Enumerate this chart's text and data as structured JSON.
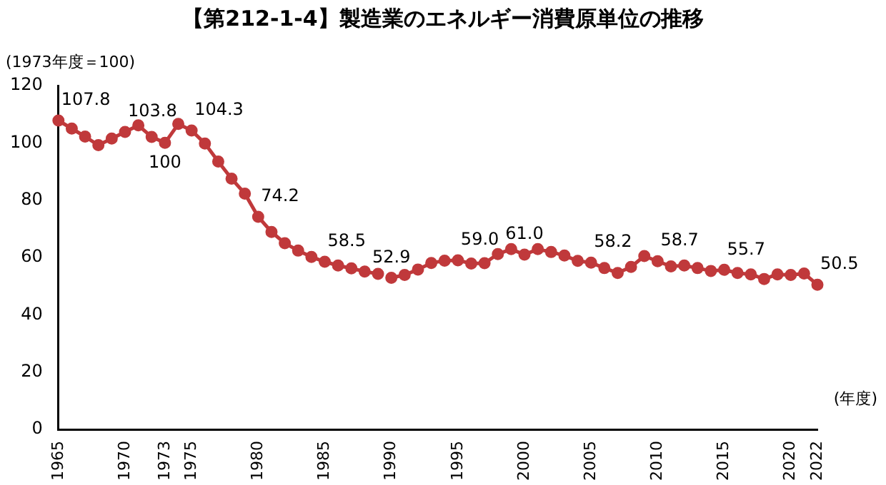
{
  "chart_data": {
    "type": "line",
    "title": "【第212-1-4】製造業のエネルギー消費原単位の推移",
    "ylabel": "(1973年度＝100)",
    "xlabel": "(年度)",
    "categories": [
      "1965",
      null,
      null,
      null,
      null,
      "1970",
      null,
      null,
      "1973",
      null,
      "1975",
      null,
      null,
      null,
      null,
      "1980",
      null,
      null,
      null,
      null,
      "1985",
      null,
      null,
      null,
      null,
      "1990",
      null,
      null,
      null,
      null,
      "1995",
      null,
      null,
      null,
      null,
      "2000",
      null,
      null,
      null,
      null,
      "2005",
      null,
      null,
      null,
      null,
      "2010",
      null,
      null,
      null,
      null,
      "2015",
      null,
      null,
      null,
      null,
      "2020",
      null,
      "2022"
    ],
    "series": [
      {
        "color": "#c0393b",
        "values": [
          107.8,
          105.0,
          102.2,
          99.2,
          101.5,
          103.8,
          106.1,
          102.1,
          100,
          106.6,
          104.3,
          99.8,
          93.5,
          87.5,
          82.3,
          74.2,
          68.9,
          65.0,
          62.4,
          60.2,
          58.5,
          57.2,
          56.2,
          55.1,
          54.3,
          null,
          null,
          null,
          null,
          null,
          null,
          null,
          null,
          null,
          null,
          null,
          null,
          null,
          null,
          null,
          null,
          null,
          null,
          null,
          null,
          null,
          null,
          null,
          null,
          null,
          null,
          null,
          null,
          null,
          null,
          null,
          null,
          null
        ],
        "value_labels": [
          "107.8",
          null,
          null,
          null,
          null,
          "103.8",
          null,
          null,
          "100",
          null,
          "104.3",
          null,
          null,
          null,
          null,
          "74.2",
          null,
          null,
          null,
          null,
          "58.5",
          null,
          null,
          null,
          null,
          null,
          null,
          null,
          null,
          null,
          null,
          null,
          null,
          null,
          null,
          null,
          null,
          null,
          null,
          null,
          null,
          null,
          null,
          null,
          null,
          null,
          null,
          null,
          null,
          null,
          null,
          null,
          null,
          null,
          null,
          null,
          null,
          null
        ]
      },
      {
        "color": "#c0393b",
        "values": [
          null,
          null,
          null,
          null,
          null,
          null,
          null,
          null,
          null,
          null,
          null,
          null,
          null,
          null,
          null,
          null,
          null,
          null,
          null,
          null,
          null,
          null,
          null,
          null,
          null,
          52.9,
          53.9,
          55.8,
          58.1,
          58.9,
          59.0,
          57.9,
          58.0,
          61.2,
          62.9,
          61.0,
          62.9,
          61.9,
          60.7,
          58.8,
          58.2,
          56.3,
          54.6,
          56.7,
          60.5,
          58.7,
          56.9,
          57.2,
          56.3,
          55.3,
          55.7,
          54.6,
          54.1,
          52.5,
          54.1,
          53.9,
          54.4,
          50.5
        ],
        "value_labels": [
          null,
          null,
          null,
          null,
          null,
          null,
          null,
          null,
          null,
          null,
          null,
          null,
          null,
          null,
          null,
          null,
          null,
          null,
          null,
          null,
          null,
          null,
          null,
          null,
          null,
          "52.9",
          null,
          null,
          null,
          null,
          "59.0",
          null,
          null,
          null,
          null,
          "61.0",
          null,
          null,
          null,
          null,
          "58.2",
          null,
          null,
          null,
          null,
          "58.7",
          null,
          null,
          null,
          null,
          "55.7",
          null,
          null,
          null,
          null,
          null,
          null,
          "50.5"
        ]
      }
    ],
    "ylim": [
      0,
      120
    ],
    "yticks": [
      0,
      20,
      40,
      60,
      80,
      100,
      120
    ],
    "grid": false,
    "legend": false,
    "marker": "circle",
    "line_style": "solid"
  }
}
